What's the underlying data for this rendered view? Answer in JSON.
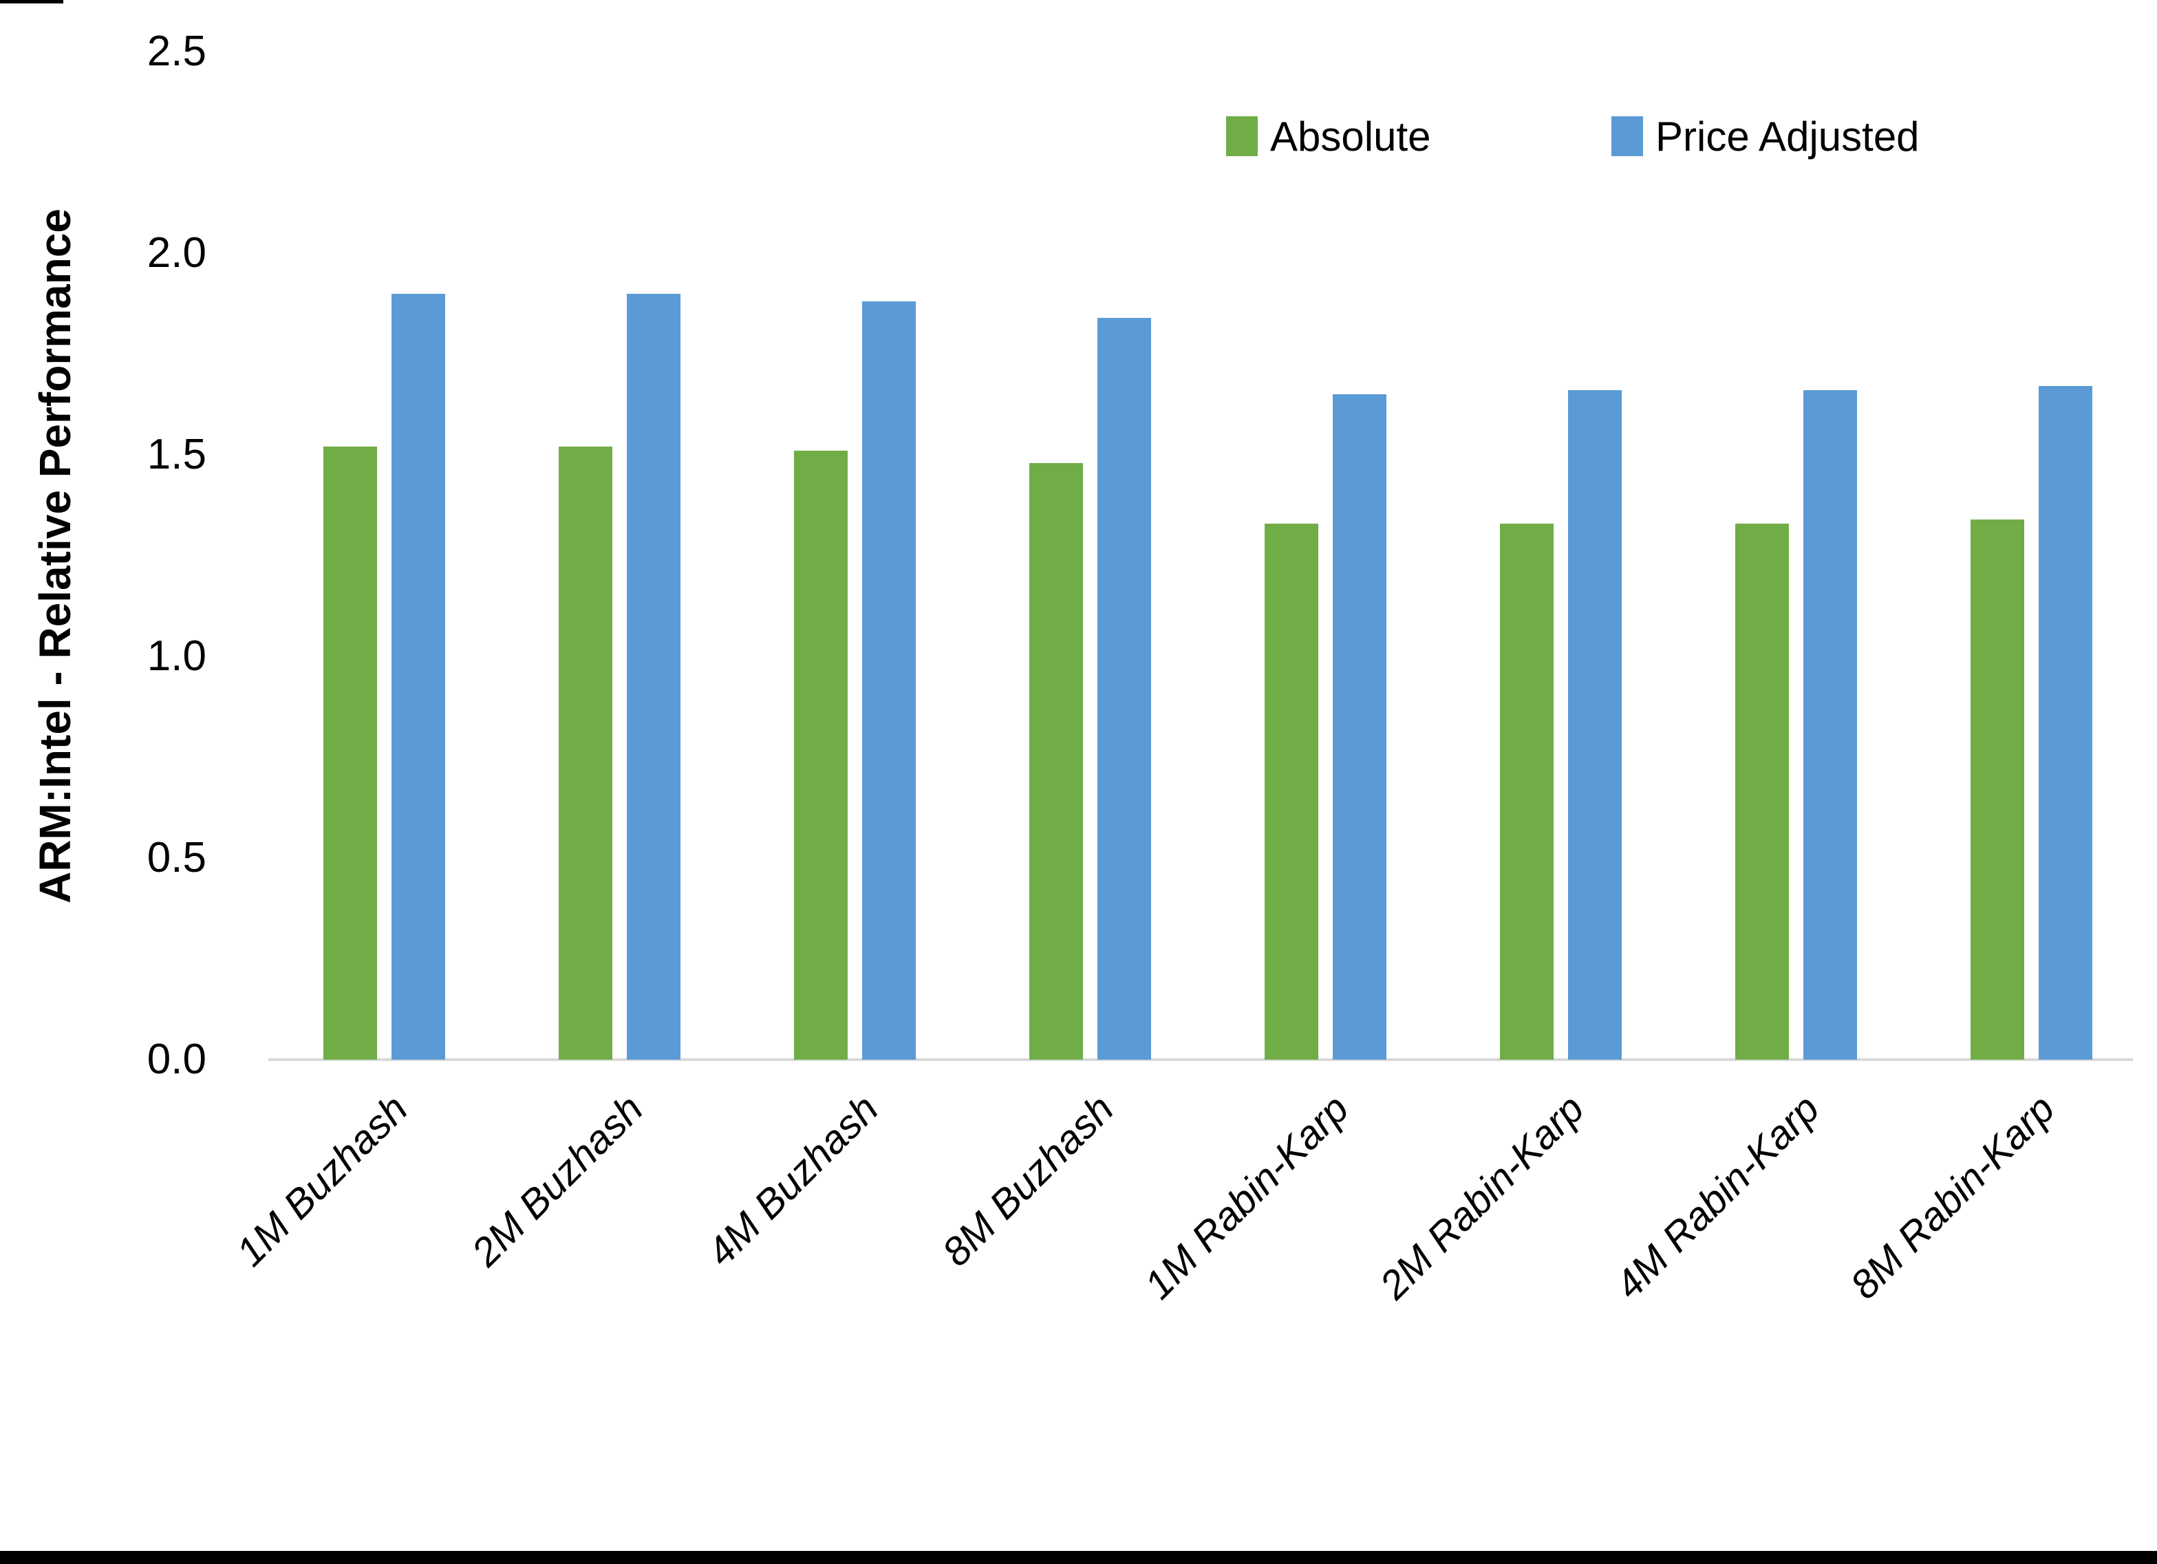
{
  "figure": {
    "background": "#FFFFFF",
    "border_color": "#000000"
  },
  "chart_data": {
    "type": "bar",
    "title": "",
    "xlabel": "",
    "ylabel": "ARM:Intel - Relative Performance",
    "ylim": [
      0,
      2.5
    ],
    "ytick_labels": [
      "0.0",
      "0.5",
      "1.0",
      "1.5",
      "2.0",
      "2.5"
    ],
    "ytick_values": [
      0.0,
      0.5,
      1.0,
      1.5,
      2.0,
      2.5
    ],
    "grid": false,
    "legend_position": "top-right-inside",
    "axis_line_color": "#D9D9D9",
    "categories": [
      "1M Buzhash",
      "2M Buzhash",
      "4M Buzhash",
      "8M Buzhash",
      "1M Rabin-Karp",
      "2M Rabin-Karp",
      "4M Rabin-Karp",
      "8M Rabin-Karp"
    ],
    "series": [
      {
        "name": "Absolute",
        "color": "#70AD47",
        "values": [
          1.52,
          1.52,
          1.51,
          1.48,
          1.33,
          1.33,
          1.33,
          1.34
        ]
      },
      {
        "name": "Price Adjusted",
        "color": "#5B9BD5",
        "values": [
          1.9,
          1.9,
          1.88,
          1.84,
          1.65,
          1.66,
          1.66,
          1.67
        ]
      }
    ]
  }
}
